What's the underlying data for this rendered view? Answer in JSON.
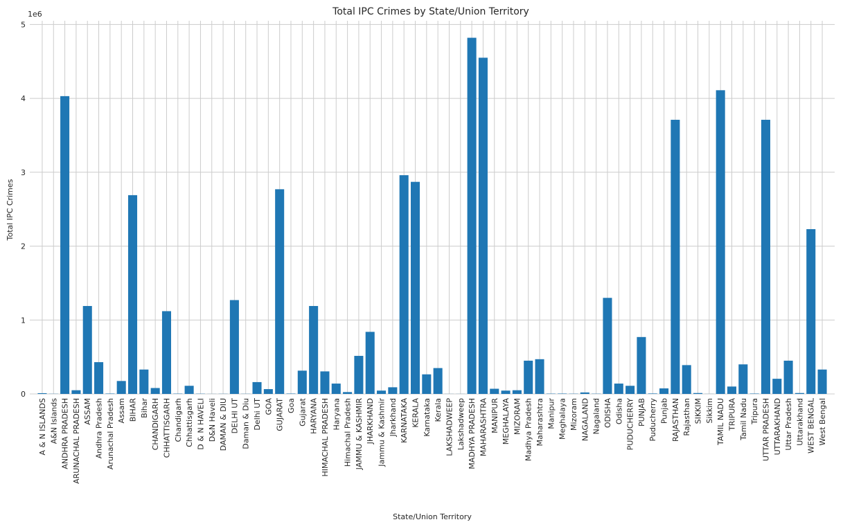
{
  "chart_data": {
    "type": "bar",
    "title": "Total IPC Crimes by State/Union Territory",
    "xlabel": "State/Union Territory",
    "ylabel": "Total IPC Crimes",
    "y_offset_text": "1e6",
    "ylim": [
      0,
      5050000
    ],
    "yticks": [
      0,
      1,
      2,
      3,
      4,
      5
    ],
    "grid": true,
    "bar_color": "#1f77b4",
    "categories": [
      "A & N ISLANDS",
      "A&N Islands",
      "ANDHRA PRADESH",
      "ARUNACHAL PRADESH",
      "ASSAM",
      "Andhra Pradesh",
      "Arunachal Pradesh",
      "Assam",
      "BIHAR",
      "Bihar",
      "CHANDIGARH",
      "CHHATTISGARH",
      "Chandigarh",
      "Chhattisgarh",
      "D & N HAVELI",
      "D&N Haveli",
      "DAMAN & DIU",
      "DELHI UT",
      "Daman & Diu",
      "Delhi UT",
      "GOA",
      "GUJARAT",
      "Goa",
      "Gujarat",
      "HARYANA",
      "HIMACHAL PRADESH",
      "Haryana",
      "Himachal Pradesh",
      "JAMMU & KASHMIR",
      "JHARKHAND",
      "Jammu & Kashmir",
      "Jharkhand",
      "KARNATAKA",
      "KERALA",
      "Karnataka",
      "Kerala",
      "LAKSHADWEEP",
      "Lakshadweep",
      "MADHYA PRADESH",
      "MAHARASHTRA",
      "MANIPUR",
      "MEGHALAYA",
      "MIZORAM",
      "Madhya Pradesh",
      "Maharashtra",
      "Manipur",
      "Meghalaya",
      "Mizoram",
      "NAGALAND",
      "Nagaland",
      "ODISHA",
      "Odisha",
      "PUDUCHERRY",
      "PUNJAB",
      "Puducherry",
      "Punjab",
      "RAJASTHAN",
      "Rajasthan",
      "SIKKIM",
      "Sikkim",
      "TAMIL NADU",
      "TRIPURA",
      "Tamil Nadu",
      "Tripura",
      "UTTAR PRADESH",
      "UTTARAKHAND",
      "Uttar Pradesh",
      "Uttarakhand",
      "WEST BENGAL",
      "West Bengal"
    ],
    "values": [
      10000,
      2000,
      4030000,
      50000,
      1190000,
      430000,
      5000,
      175000,
      2690000,
      330000,
      80000,
      1120000,
      4000,
      110000,
      3000,
      1000,
      2000,
      1270000,
      2000,
      160000,
      65000,
      2770000,
      5000,
      315000,
      1190000,
      305000,
      140000,
      25000,
      515000,
      840000,
      45000,
      90000,
      2960000,
      2870000,
      265000,
      350000,
      1000,
      1000,
      4820000,
      4550000,
      70000,
      45000,
      50000,
      450000,
      470000,
      4000,
      5000,
      3000,
      20000,
      3000,
      1300000,
      140000,
      110000,
      770000,
      6000,
      75000,
      3710000,
      390000,
      12000,
      1000,
      4110000,
      100000,
      400000,
      5000,
      3710000,
      205000,
      450000,
      12000,
      2230000,
      330000
    ]
  }
}
